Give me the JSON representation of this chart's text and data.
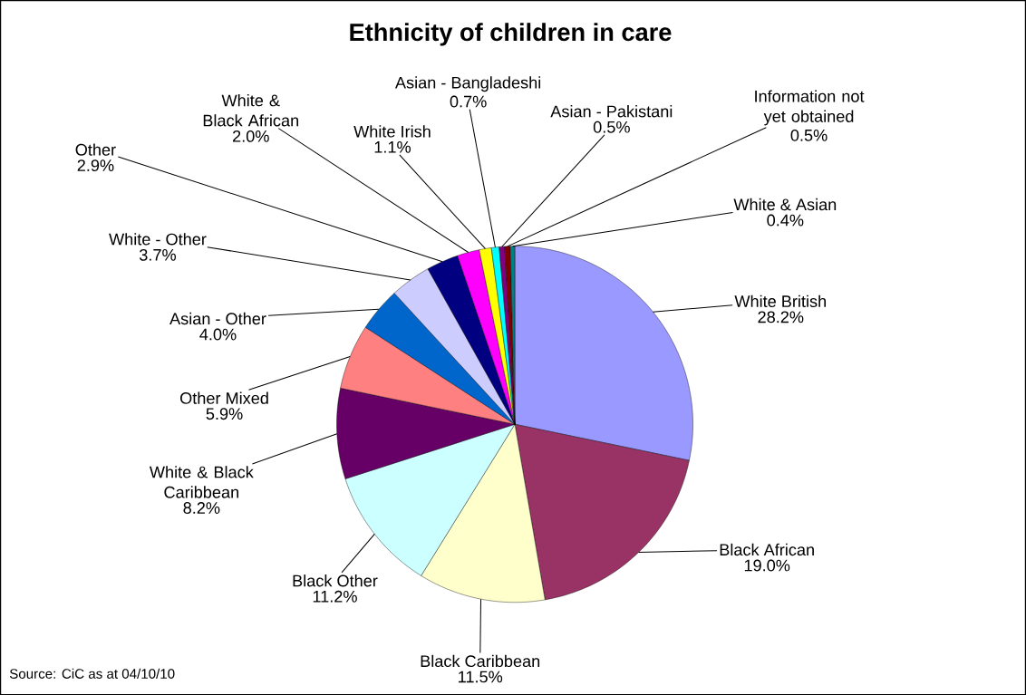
{
  "chart_data": {
    "type": "pie",
    "title": "Ethnicity of children in care",
    "categories": [
      "White British",
      "Black African",
      "Black Caribbean",
      "Black Other",
      "White & Black Caribbean",
      "Other Mixed",
      "Asian - Other",
      "White - Other",
      "Other",
      "White & Black African",
      "White Irish",
      "Asian - Bangladeshi",
      "Asian - Pakistani",
      "Information not yet obtained",
      "White & Asian"
    ],
    "values": [
      28.2,
      19.0,
      11.5,
      11.2,
      8.2,
      5.9,
      4.0,
      3.7,
      2.9,
      2.0,
      1.1,
      0.7,
      0.5,
      0.5,
      0.4
    ],
    "value_labels": [
      "28.2%",
      "19.0%",
      "11.5%",
      "11.2%",
      "8.2%",
      "5.9%",
      "4.0%",
      "3.7%",
      "2.9%",
      "2.0%",
      "1.1%",
      "0.7%",
      "0.5%",
      "0.5%",
      "0.4%"
    ],
    "colors": [
      "#9999ff",
      "#993366",
      "#ffffcc",
      "#ccffff",
      "#660066",
      "#ff8080",
      "#0066cc",
      "#ccccff",
      "#000080",
      "#ff00ff",
      "#ffff00",
      "#00ffff",
      "#800080",
      "#800000",
      "#008080"
    ],
    "annotations": [
      "Source: CiC as at 04/10/10"
    ]
  }
}
